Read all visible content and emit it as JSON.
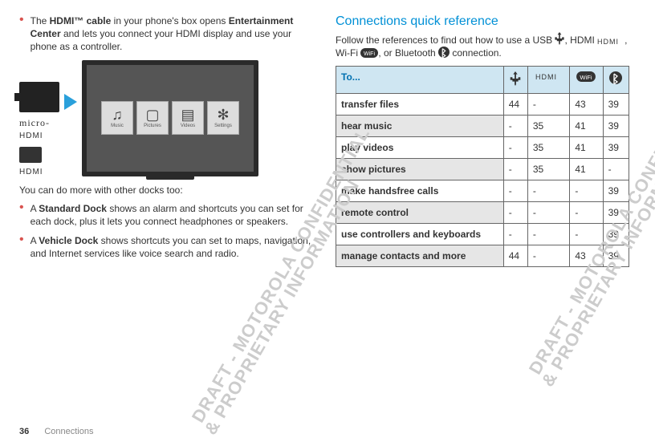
{
  "left": {
    "bullets": [
      {
        "prefix": "The ",
        "bold": "HDMI™ cable",
        "mid": " in your phone's box opens ",
        "bold2": "Entertainment Center",
        "suffix": " and lets you connect your HDMI display and use your phone as a controller."
      }
    ],
    "illus": {
      "micro_label": "micro-",
      "hdmi_text": "HDMI",
      "tiles": [
        "Music",
        "Pictures",
        "Videos",
        "Settings"
      ],
      "tile_icons": [
        "♫",
        "▢",
        "▤",
        "✻"
      ]
    },
    "after_illus": "You can do more with other docks too:",
    "bullets2": [
      {
        "prefix": "A ",
        "bold": "Standard Dock",
        "suffix": " shows an alarm and shortcuts you can set for each dock, plus it lets you connect headphones or speakers."
      },
      {
        "prefix": "A ",
        "bold": "Vehicle Dock",
        "suffix": " shows shortcuts you can set to maps, navigation, and Internet services like voice search and radio."
      }
    ]
  },
  "right": {
    "title": "Connections quick reference",
    "intro_a": "Follow the references to find out how to use a USB ",
    "intro_b": ", HDMI ",
    "intro_c": ", Wi-Fi ",
    "intro_d": ", or Bluetooth ",
    "intro_e": " connection.",
    "table": {
      "header": "To...",
      "col_icons": [
        "usb",
        "hdmi",
        "wifi",
        "bt"
      ],
      "rows": [
        {
          "label": "transfer files",
          "vals": [
            "44",
            "-",
            "43",
            "39"
          ]
        },
        {
          "label": "hear music",
          "vals": [
            "-",
            "35",
            "41",
            "39"
          ]
        },
        {
          "label": "play videos",
          "vals": [
            "-",
            "35",
            "41",
            "39"
          ]
        },
        {
          "label": "show pictures",
          "vals": [
            "-",
            "35",
            "41",
            "-"
          ]
        },
        {
          "label": "make handsfree calls",
          "vals": [
            "-",
            "-",
            "-",
            "39"
          ]
        },
        {
          "label": "remote control",
          "vals": [
            "-",
            "-",
            "-",
            "39"
          ]
        },
        {
          "label": "use controllers and keyboards",
          "vals": [
            "-",
            "-",
            "-",
            "39"
          ]
        },
        {
          "label": "manage contacts and more",
          "vals": [
            "44",
            "-",
            "43",
            "39"
          ]
        }
      ],
      "header_bg": "#cfe6f2",
      "header_fg": "#0070b0",
      "border_color": "#666666",
      "zebra_bg": "#e6e6e6"
    }
  },
  "footer": {
    "page": "36",
    "section": "Connections"
  }
}
